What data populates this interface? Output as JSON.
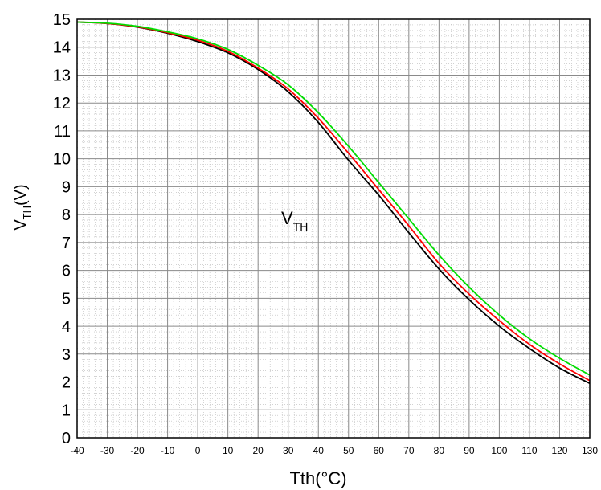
{
  "chart_data": {
    "type": "line",
    "title": "",
    "xlabel": "Tth(°C)",
    "ylabel": {
      "main": "V",
      "sub": "TH",
      "suffix": "(V)"
    },
    "annotation": {
      "main": "V",
      "sub": "TH"
    },
    "xlim": [
      -40,
      130
    ],
    "ylim": [
      0,
      15
    ],
    "x_ticks": [
      "-40",
      "-30",
      "-20",
      "-10",
      "0",
      "10",
      "20",
      "30",
      "40",
      "50",
      "60",
      "70",
      "80",
      "90",
      "100",
      "110",
      "120",
      "130"
    ],
    "y_ticks": [
      "0",
      "1",
      "2",
      "3",
      "4",
      "5",
      "6",
      "7",
      "8",
      "9",
      "10",
      "11",
      "12",
      "13",
      "14",
      "15"
    ],
    "grid": "major and minor",
    "x": [
      -40,
      -30,
      -20,
      -10,
      0,
      10,
      20,
      30,
      40,
      50,
      60,
      70,
      80,
      90,
      100,
      110,
      120,
      130
    ],
    "series": [
      {
        "color": "#000000",
        "values": [
          14.9,
          14.85,
          14.72,
          14.5,
          14.2,
          13.8,
          13.2,
          12.4,
          11.3,
          9.95,
          8.7,
          7.35,
          6.05,
          4.95,
          4.0,
          3.2,
          2.5,
          1.95
        ]
      },
      {
        "color": "#ff0000",
        "values": [
          14.9,
          14.85,
          14.73,
          14.52,
          14.25,
          13.85,
          13.25,
          12.5,
          11.45,
          10.2,
          8.9,
          7.6,
          6.25,
          5.15,
          4.2,
          3.35,
          2.65,
          2.05
        ]
      },
      {
        "color": "#00dd00",
        "values": [
          14.9,
          14.86,
          14.75,
          14.55,
          14.3,
          13.92,
          13.35,
          12.65,
          11.65,
          10.45,
          9.15,
          7.85,
          6.55,
          5.4,
          4.4,
          3.55,
          2.85,
          2.25
        ]
      }
    ]
  }
}
